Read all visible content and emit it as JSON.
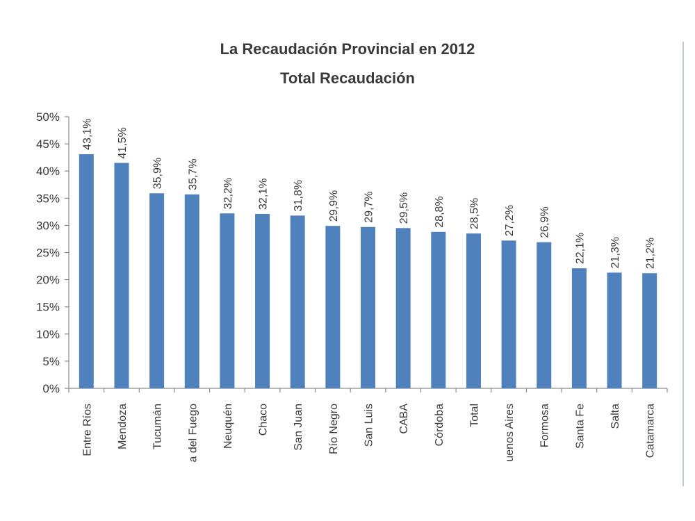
{
  "chart_data": {
    "type": "bar",
    "title": "La Recaudación Provincial en 2012",
    "subtitle": "Total Recaudación",
    "xlabel": "",
    "ylabel": "",
    "ylim": [
      0,
      50
    ],
    "y_ticks": [
      "0%",
      "5%",
      "10%",
      "15%",
      "20%",
      "25%",
      "30%",
      "35%",
      "40%",
      "45%",
      "50%"
    ],
    "y_tick_values": [
      0,
      5,
      10,
      15,
      20,
      25,
      30,
      35,
      40,
      45,
      50
    ],
    "grid": false,
    "bar_color": "#4f81bd",
    "categories": [
      "Entre Ríos",
      "Mendoza",
      "Tucumán",
      "a del Fuego",
      "Neuquén",
      "Chaco",
      "San Juan",
      "Río Negro",
      "San Luis",
      "CABA",
      "Córdoba",
      "Total",
      "uenos Aires",
      "Formosa",
      "Santa Fe",
      "Salta",
      "Catamarca"
    ],
    "values": [
      43.1,
      41.5,
      35.9,
      35.7,
      32.2,
      32.1,
      31.8,
      29.9,
      29.7,
      29.5,
      28.8,
      28.5,
      27.2,
      26.9,
      22.1,
      21.3,
      21.2
    ],
    "data_labels": [
      "43,1%",
      "41,5%",
      "35,9%",
      "35,7%",
      "32,2%",
      "32,1%",
      "31,8%",
      "29,9%",
      "29,7%",
      "29,5%",
      "28,8%",
      "28,5%",
      "27,2%",
      "26,9%",
      "22,1%",
      "21,3%",
      "21,2%"
    ]
  }
}
